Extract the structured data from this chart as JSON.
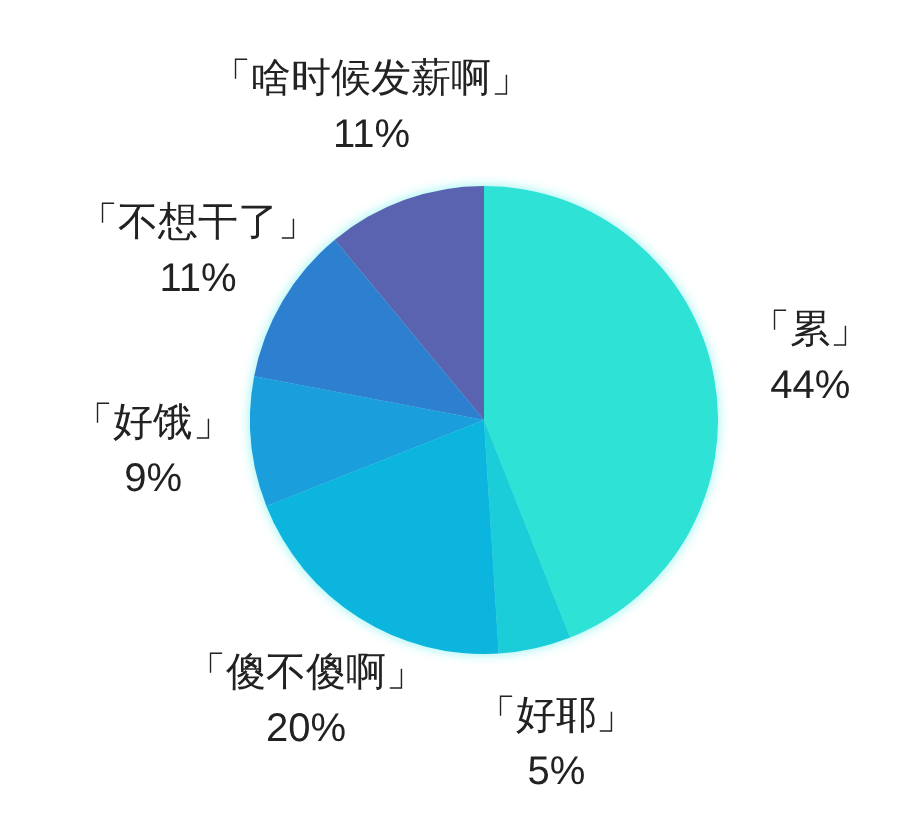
{
  "chart_data": {
    "type": "pie",
    "categories": [
      "「累」",
      "「好耶」",
      "「傻不傻啊」",
      "「好饿」",
      "「不想干了」",
      "「啥时候发薪啊」"
    ],
    "values": [
      44,
      5,
      20,
      9,
      11,
      11
    ],
    "value_labels": [
      "44%",
      "5%",
      "20%",
      "9%",
      "11%",
      "11%"
    ],
    "colors": [
      "#2fe2d6",
      "#1acdd9",
      "#0cb5de",
      "#1a9edc",
      "#2d80cf",
      "#5a63b0"
    ]
  }
}
